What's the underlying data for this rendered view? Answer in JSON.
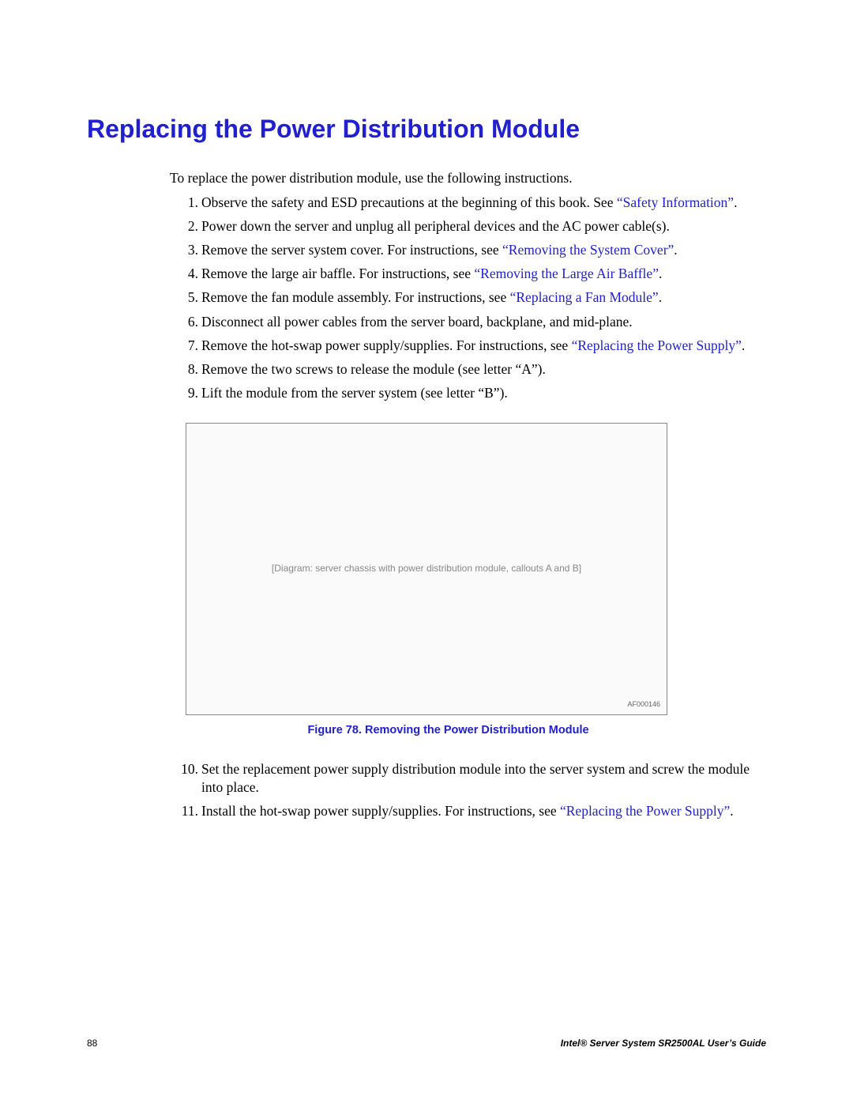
{
  "heading": "Replacing the Power Distribution Module",
  "intro": "To replace the power distribution module, use the following instructions.",
  "steps": [
    {
      "pre": "Observe the safety and ESD precautions at the beginning of this book. See ",
      "link": "“Safety Information”",
      "post": "."
    },
    {
      "pre": "Power down the server and unplug all peripheral devices and the AC power cable(s).",
      "link": "",
      "post": ""
    },
    {
      "pre": "Remove the server system cover. For instructions, see ",
      "link": "“Removing the System Cover”",
      "post": "."
    },
    {
      "pre": "Remove the large air baffle. For instructions, see ",
      "link": "“Removing the Large Air Baffle”",
      "post": "."
    },
    {
      "pre": "Remove the fan module assembly. For instructions, see ",
      "link": "“Replacing a Fan Module”",
      "post": "."
    },
    {
      "pre": "Disconnect all power cables from the server board, backplane, and mid-plane.",
      "link": "",
      "post": ""
    },
    {
      "pre": "Remove the hot-swap power supply/supplies. For instructions, see ",
      "link": "“Replacing the Power Supply”",
      "post": "."
    },
    {
      "pre": "Remove the two screws to release the module (see letter “A”).",
      "link": "",
      "post": ""
    },
    {
      "pre": "Lift the module from the server system (see letter “B”).",
      "link": "",
      "post": ""
    }
  ],
  "figure": {
    "placeholder": "[Diagram: server chassis with power distribution module, callouts A and B]",
    "ref": "AF000146",
    "caption": "Figure 78. Removing the Power Distribution Module"
  },
  "steps2": [
    {
      "n": "10",
      "pre": "Set the replacement power supply distribution module into the server system and screw the module into place.",
      "link": "",
      "post": ""
    },
    {
      "n": "11",
      "pre": "Install the hot-swap power supply/supplies. For instructions, see ",
      "link": "“Replacing the Power Supply”",
      "post": "."
    }
  ],
  "footer": {
    "page": "88",
    "guide": "Intel® Server System SR2500AL User’s Guide"
  },
  "colors": {
    "link_color": "#2020d0",
    "text_color": "#000000",
    "bg_color": "#ffffff"
  }
}
